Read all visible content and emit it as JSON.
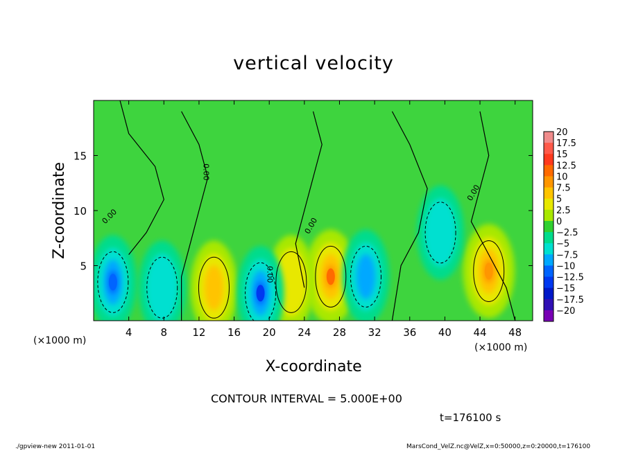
{
  "chart_data": {
    "type": "heatmap",
    "title": "vertical velocity",
    "xlabel": "X-coordinate",
    "ylabel": "Z-coordinate",
    "xunit": "(×1000 m)",
    "xlim": [
      0,
      50
    ],
    "ylim": [
      0,
      20
    ],
    "xticks": [
      "4",
      "8",
      "12",
      "16",
      "20",
      "24",
      "28",
      "32",
      "36",
      "40",
      "44",
      "48"
    ],
    "yticks": [
      "5",
      "10",
      "15"
    ],
    "colorbar_labels": [
      "20",
      "17.5",
      "15",
      "12.5",
      "10",
      "7.5",
      "5",
      "2.5",
      "0",
      "-2.5",
      "-5",
      "-7.5",
      "-10",
      "-12.5",
      "-15",
      "-17.5",
      "-20"
    ],
    "colorbar_colors": [
      "#f08c8c",
      "#ff5a4a",
      "#ff3a1e",
      "#ff6a00",
      "#ff9600",
      "#ffc400",
      "#e8e800",
      "#a8e800",
      "#30d030",
      "#00dc8c",
      "#00e0d0",
      "#00a8ff",
      "#0064ff",
      "#0038f0",
      "#0018c8",
      "#3010b4",
      "#7800b4"
    ],
    "contour_label": "0.00",
    "features": [
      {
        "name": "updraft",
        "x": 27,
        "z": 4,
        "peak": 12.5
      },
      {
        "name": "updraft",
        "x": 45,
        "z": 4.5,
        "peak": 10
      },
      {
        "name": "updraft",
        "x": 13.7,
        "z": 3,
        "peak": 7.5
      },
      {
        "name": "updraft",
        "x": 22.5,
        "z": 3.5,
        "peak": 5
      },
      {
        "name": "downdraft",
        "x": 2.2,
        "z": 3.5,
        "peak": -10
      },
      {
        "name": "downdraft",
        "x": 19,
        "z": 2.5,
        "peak": -12.5
      },
      {
        "name": "downdraft",
        "x": 31,
        "z": 4,
        "peak": -7.5
      },
      {
        "name": "downdraft",
        "x": 39.5,
        "z": 8,
        "peak": -5
      },
      {
        "name": "downdraft",
        "x": 7.8,
        "z": 3,
        "peak": -5
      }
    ]
  },
  "contour_interval": "CONTOUR INTERVAL = 5.000E+00",
  "time_label": "t=176100  s",
  "footer_left": "./gpview-new   2011-01-01",
  "footer_right": "MarsCond_VelZ.nc@VelZ,x=0:50000,z=0:20000,t=176100"
}
